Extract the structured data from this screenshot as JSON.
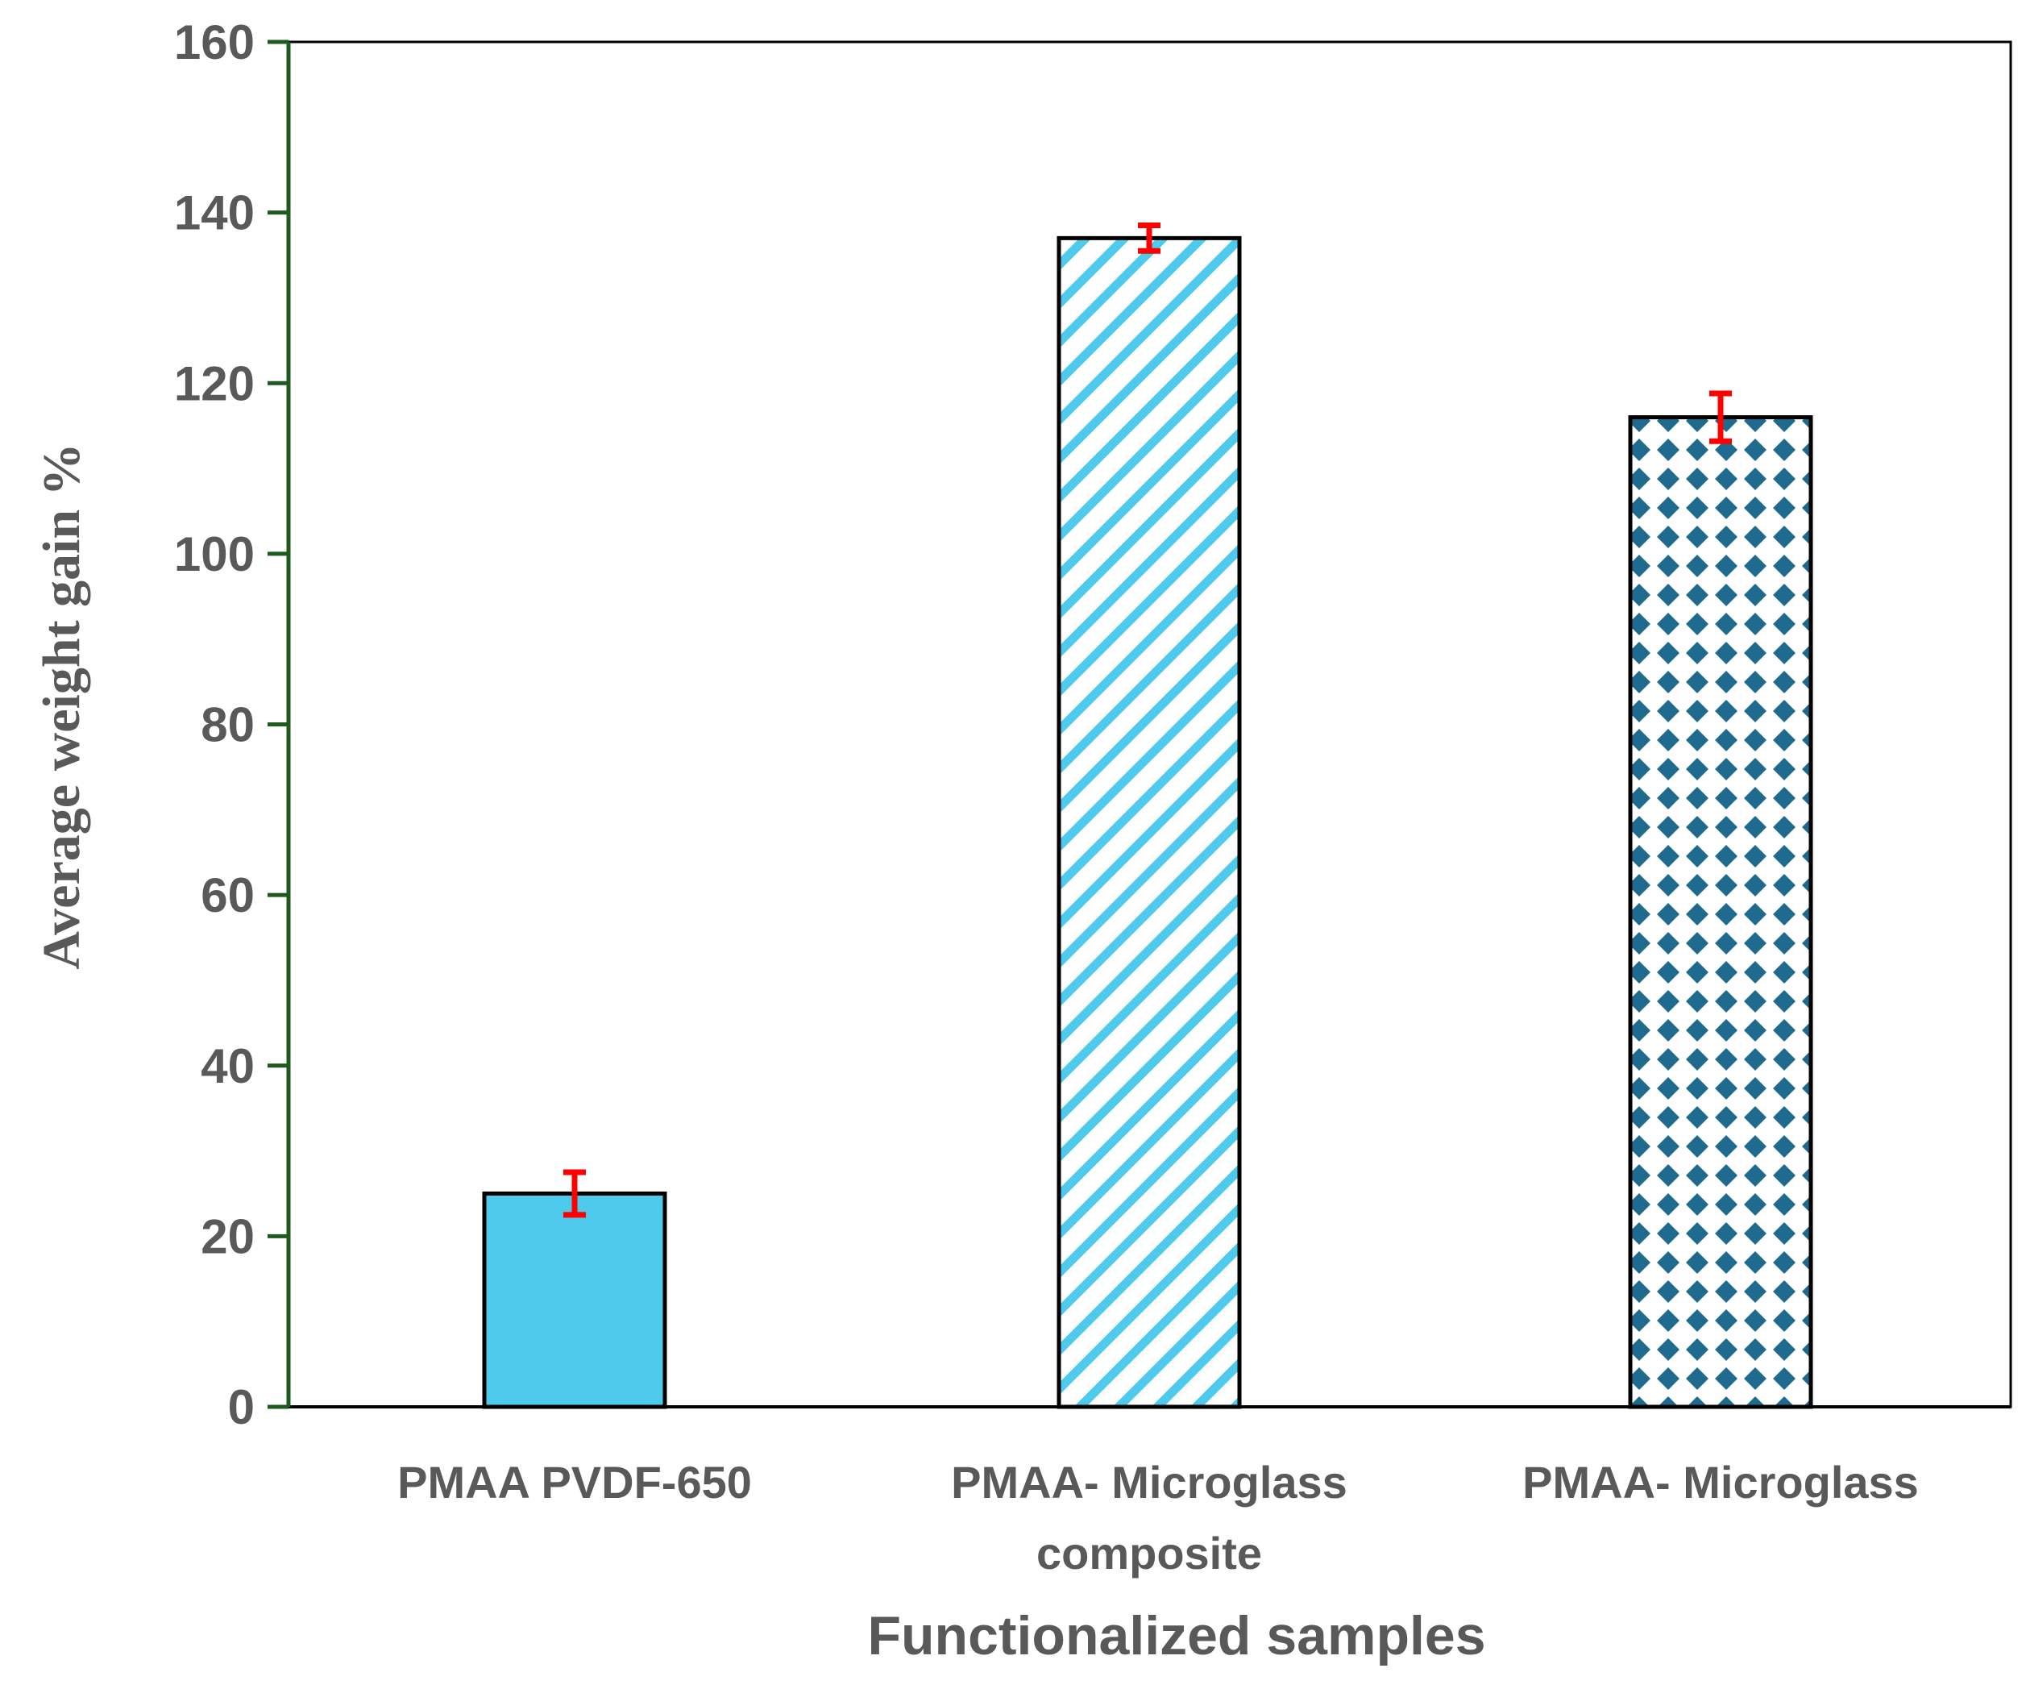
{
  "chart_data": {
    "type": "bar",
    "title": "",
    "xlabel": "Functionalized samples",
    "ylabel": "Average weight gain %",
    "ylim": [
      0,
      160
    ],
    "yticks": [
      0,
      20,
      40,
      60,
      80,
      100,
      120,
      140,
      160
    ],
    "yticks_text": [
      "0",
      "20",
      "40",
      "60",
      "80",
      "100",
      "120",
      "140",
      "160"
    ],
    "grid": false,
    "categories": [
      {
        "lines": [
          "PMAA PVDF-650"
        ]
      },
      {
        "lines": [
          "PMAA- Microglass",
          "composite"
        ]
      },
      {
        "lines": [
          "PMAA- Microglass"
        ]
      }
    ],
    "values": [
      25,
      137,
      116
    ],
    "errors": [
      2.5,
      1.5,
      2.8
    ],
    "fills": [
      "solid",
      "diagonal-stripes",
      "diamond-grid"
    ],
    "colors": {
      "solid_fill": "#4ecbec",
      "stripe_color": "#4ecbec",
      "diamond_color": "#1f6b8f",
      "error_bar": "#ff0000",
      "left_axis": "#1e5a1e",
      "frame": "#000000",
      "text": "#595959"
    }
  }
}
